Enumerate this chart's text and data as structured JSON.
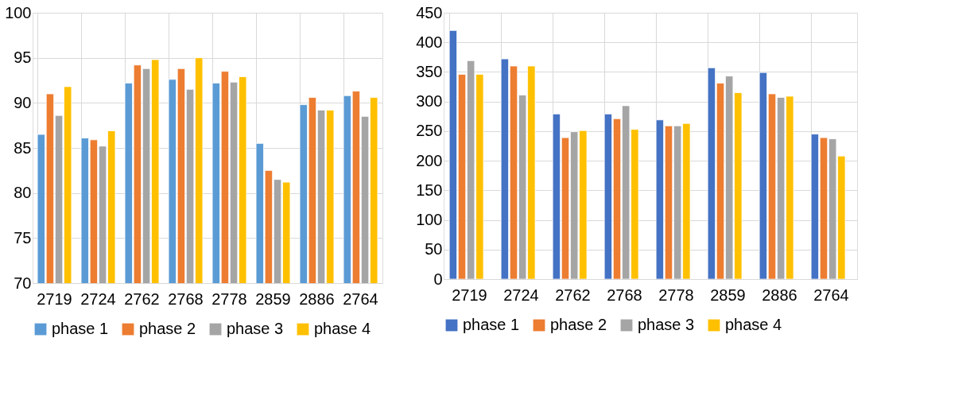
{
  "chart_data": [
    {
      "type": "bar",
      "categories": [
        "2719",
        "2724",
        "2762",
        "2768",
        "2778",
        "2859",
        "2886",
        "2764"
      ],
      "ylim": [
        70,
        100
      ],
      "yticks": [
        70,
        75,
        80,
        85,
        90,
        95,
        100
      ],
      "grid": true,
      "legend": "bottom",
      "series": [
        {
          "name": "phase 1",
          "color": "#5b9bd5",
          "values": [
            86.5,
            86.1,
            92.2,
            92.6,
            92.2,
            85.5,
            89.8,
            90.8
          ]
        },
        {
          "name": "phase 2",
          "color": "#ed7d31",
          "values": [
            91.0,
            85.9,
            94.2,
            93.8,
            93.5,
            82.5,
            90.6,
            91.3
          ]
        },
        {
          "name": "phase 3",
          "color": "#a5a5a5",
          "values": [
            88.6,
            85.2,
            93.8,
            91.5,
            92.3,
            81.5,
            89.2,
            88.5
          ]
        },
        {
          "name": "phase 4",
          "color": "#ffc000",
          "values": [
            91.8,
            86.9,
            94.8,
            95.0,
            92.9,
            81.2,
            89.2,
            90.6
          ]
        }
      ]
    },
    {
      "type": "bar",
      "categories": [
        "2719",
        "2724",
        "2762",
        "2768",
        "2778",
        "2859",
        "2886",
        "2764"
      ],
      "ylim": [
        0,
        450
      ],
      "yticks": [
        0,
        50,
        100,
        150,
        200,
        250,
        300,
        350,
        400,
        450
      ],
      "grid": true,
      "legend": "bottom",
      "series": [
        {
          "name": "phase 1",
          "color": "#4472c4",
          "values": [
            420,
            372,
            279,
            279,
            269,
            357,
            349,
            245
          ]
        },
        {
          "name": "phase 2",
          "color": "#ed7d31",
          "values": [
            346,
            360,
            239,
            271,
            259,
            331,
            313,
            239
          ]
        },
        {
          "name": "phase 3",
          "color": "#a5a5a5",
          "values": [
            369,
            311,
            249,
            293,
            259,
            343,
            307,
            237
          ]
        },
        {
          "name": "phase 4",
          "color": "#ffc000",
          "values": [
            346,
            360,
            251,
            253,
            263,
            315,
            309,
            208
          ]
        }
      ]
    }
  ]
}
